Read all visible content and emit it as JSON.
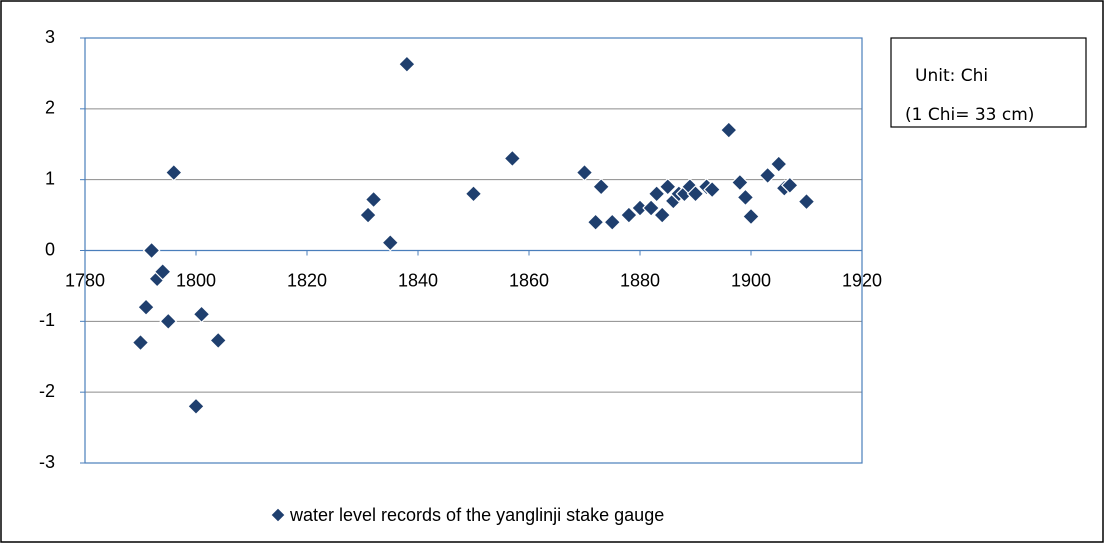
{
  "chart_data": {
    "type": "scatter",
    "x": [
      1790,
      1791,
      1792,
      1793,
      1794,
      1795,
      1796,
      1800,
      1801,
      1804,
      1831,
      1832,
      1835,
      1838,
      1850,
      1857,
      1870,
      1872,
      1873,
      1875,
      1878,
      1880,
      1882,
      1883,
      1884,
      1885,
      1886,
      1887,
      1888,
      1889,
      1890,
      1892,
      1893,
      1896,
      1898,
      1899,
      1900,
      1903,
      1905,
      1906,
      1907,
      1910
    ],
    "series": [
      {
        "name": "water level records of the yanglinji stake gauge",
        "color": "#1f3f6e",
        "values": [
          -1.3,
          -0.8,
          0,
          -0.4,
          -0.3,
          -1.0,
          1.1,
          -2.2,
          -0.9,
          -1.27,
          0.5,
          0.72,
          0.11,
          2.63,
          0.8,
          1.3,
          1.1,
          0.4,
          0.9,
          0.4,
          0.5,
          0.6,
          0.6,
          0.8,
          0.5,
          0.9,
          0.7,
          0.8,
          0.8,
          0.9,
          0.8,
          0.9,
          0.86,
          1.7,
          0.96,
          0.75,
          0.48,
          1.06,
          1.22,
          0.88,
          0.92,
          0.69
        ]
      }
    ],
    "xlim": [
      1780,
      1920
    ],
    "xticks": [
      1780,
      1800,
      1820,
      1840,
      1860,
      1880,
      1900,
      1920
    ],
    "ylim": [
      -3,
      3
    ],
    "yticks": [
      -3,
      -2,
      -1,
      0,
      1,
      2,
      3
    ],
    "grid": true,
    "legend": "bottom",
    "annotations": [
      "Unit: Chi",
      "(1 Chi= 33 cm)"
    ]
  }
}
